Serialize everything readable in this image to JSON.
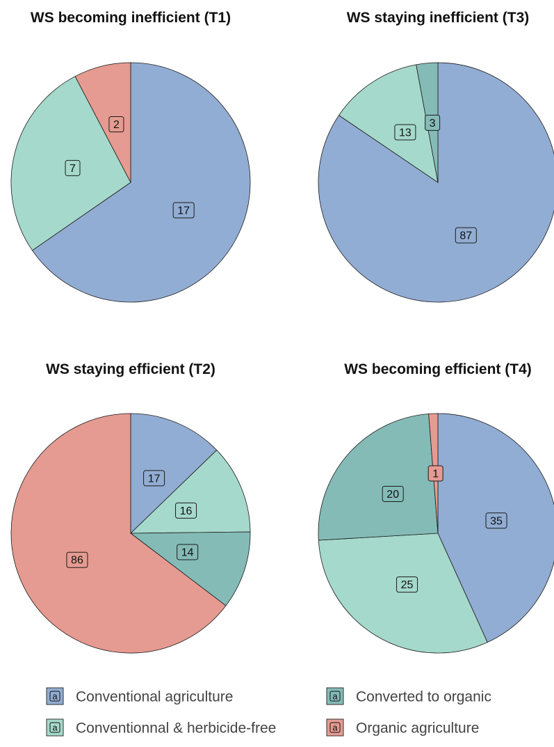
{
  "colors": {
    "Conventional agriculture": "#92add3",
    "Conventionnal & herbicide-free": "#a5d9cb",
    "Converted to organic": "#84bbb7",
    "Organic agriculture": "#e59b91"
  },
  "chart_data": [
    {
      "type": "pie",
      "title": "WS becoming inefficient (T1)",
      "slices": [
        {
          "name": "Conventional agriculture",
          "value": 17
        },
        {
          "name": "Conventionnal & herbicide-free",
          "value": 7
        },
        {
          "name": "Organic agriculture",
          "value": 2
        }
      ]
    },
    {
      "type": "pie",
      "title": "WS staying inefficient (T3)",
      "slices": [
        {
          "name": "Conventional agriculture",
          "value": 87
        },
        {
          "name": "Conventionnal & herbicide-free",
          "value": 13
        },
        {
          "name": "Converted to organic",
          "value": 3
        }
      ]
    },
    {
      "type": "pie",
      "title": "WS staying efficient (T2)",
      "slices": [
        {
          "name": "Conventional agriculture",
          "value": 17
        },
        {
          "name": "Conventionnal & herbicide-free",
          "value": 16
        },
        {
          "name": "Converted to organic",
          "value": 14
        },
        {
          "name": "Organic agriculture",
          "value": 86
        }
      ]
    },
    {
      "type": "pie",
      "title": "WS becoming efficient (T4)",
      "slices": [
        {
          "name": "Conventional agriculture",
          "value": 35
        },
        {
          "name": "Conventionnal & herbicide-free",
          "value": 25
        },
        {
          "name": "Converted to organic",
          "value": 20
        },
        {
          "name": "Organic agriculture",
          "value": 1
        }
      ]
    }
  ],
  "legend": {
    "key_letter": "a",
    "items": [
      "Conventional agriculture",
      "Converted to organic",
      "Conventionnal & herbicide-free",
      "Organic agriculture"
    ]
  }
}
